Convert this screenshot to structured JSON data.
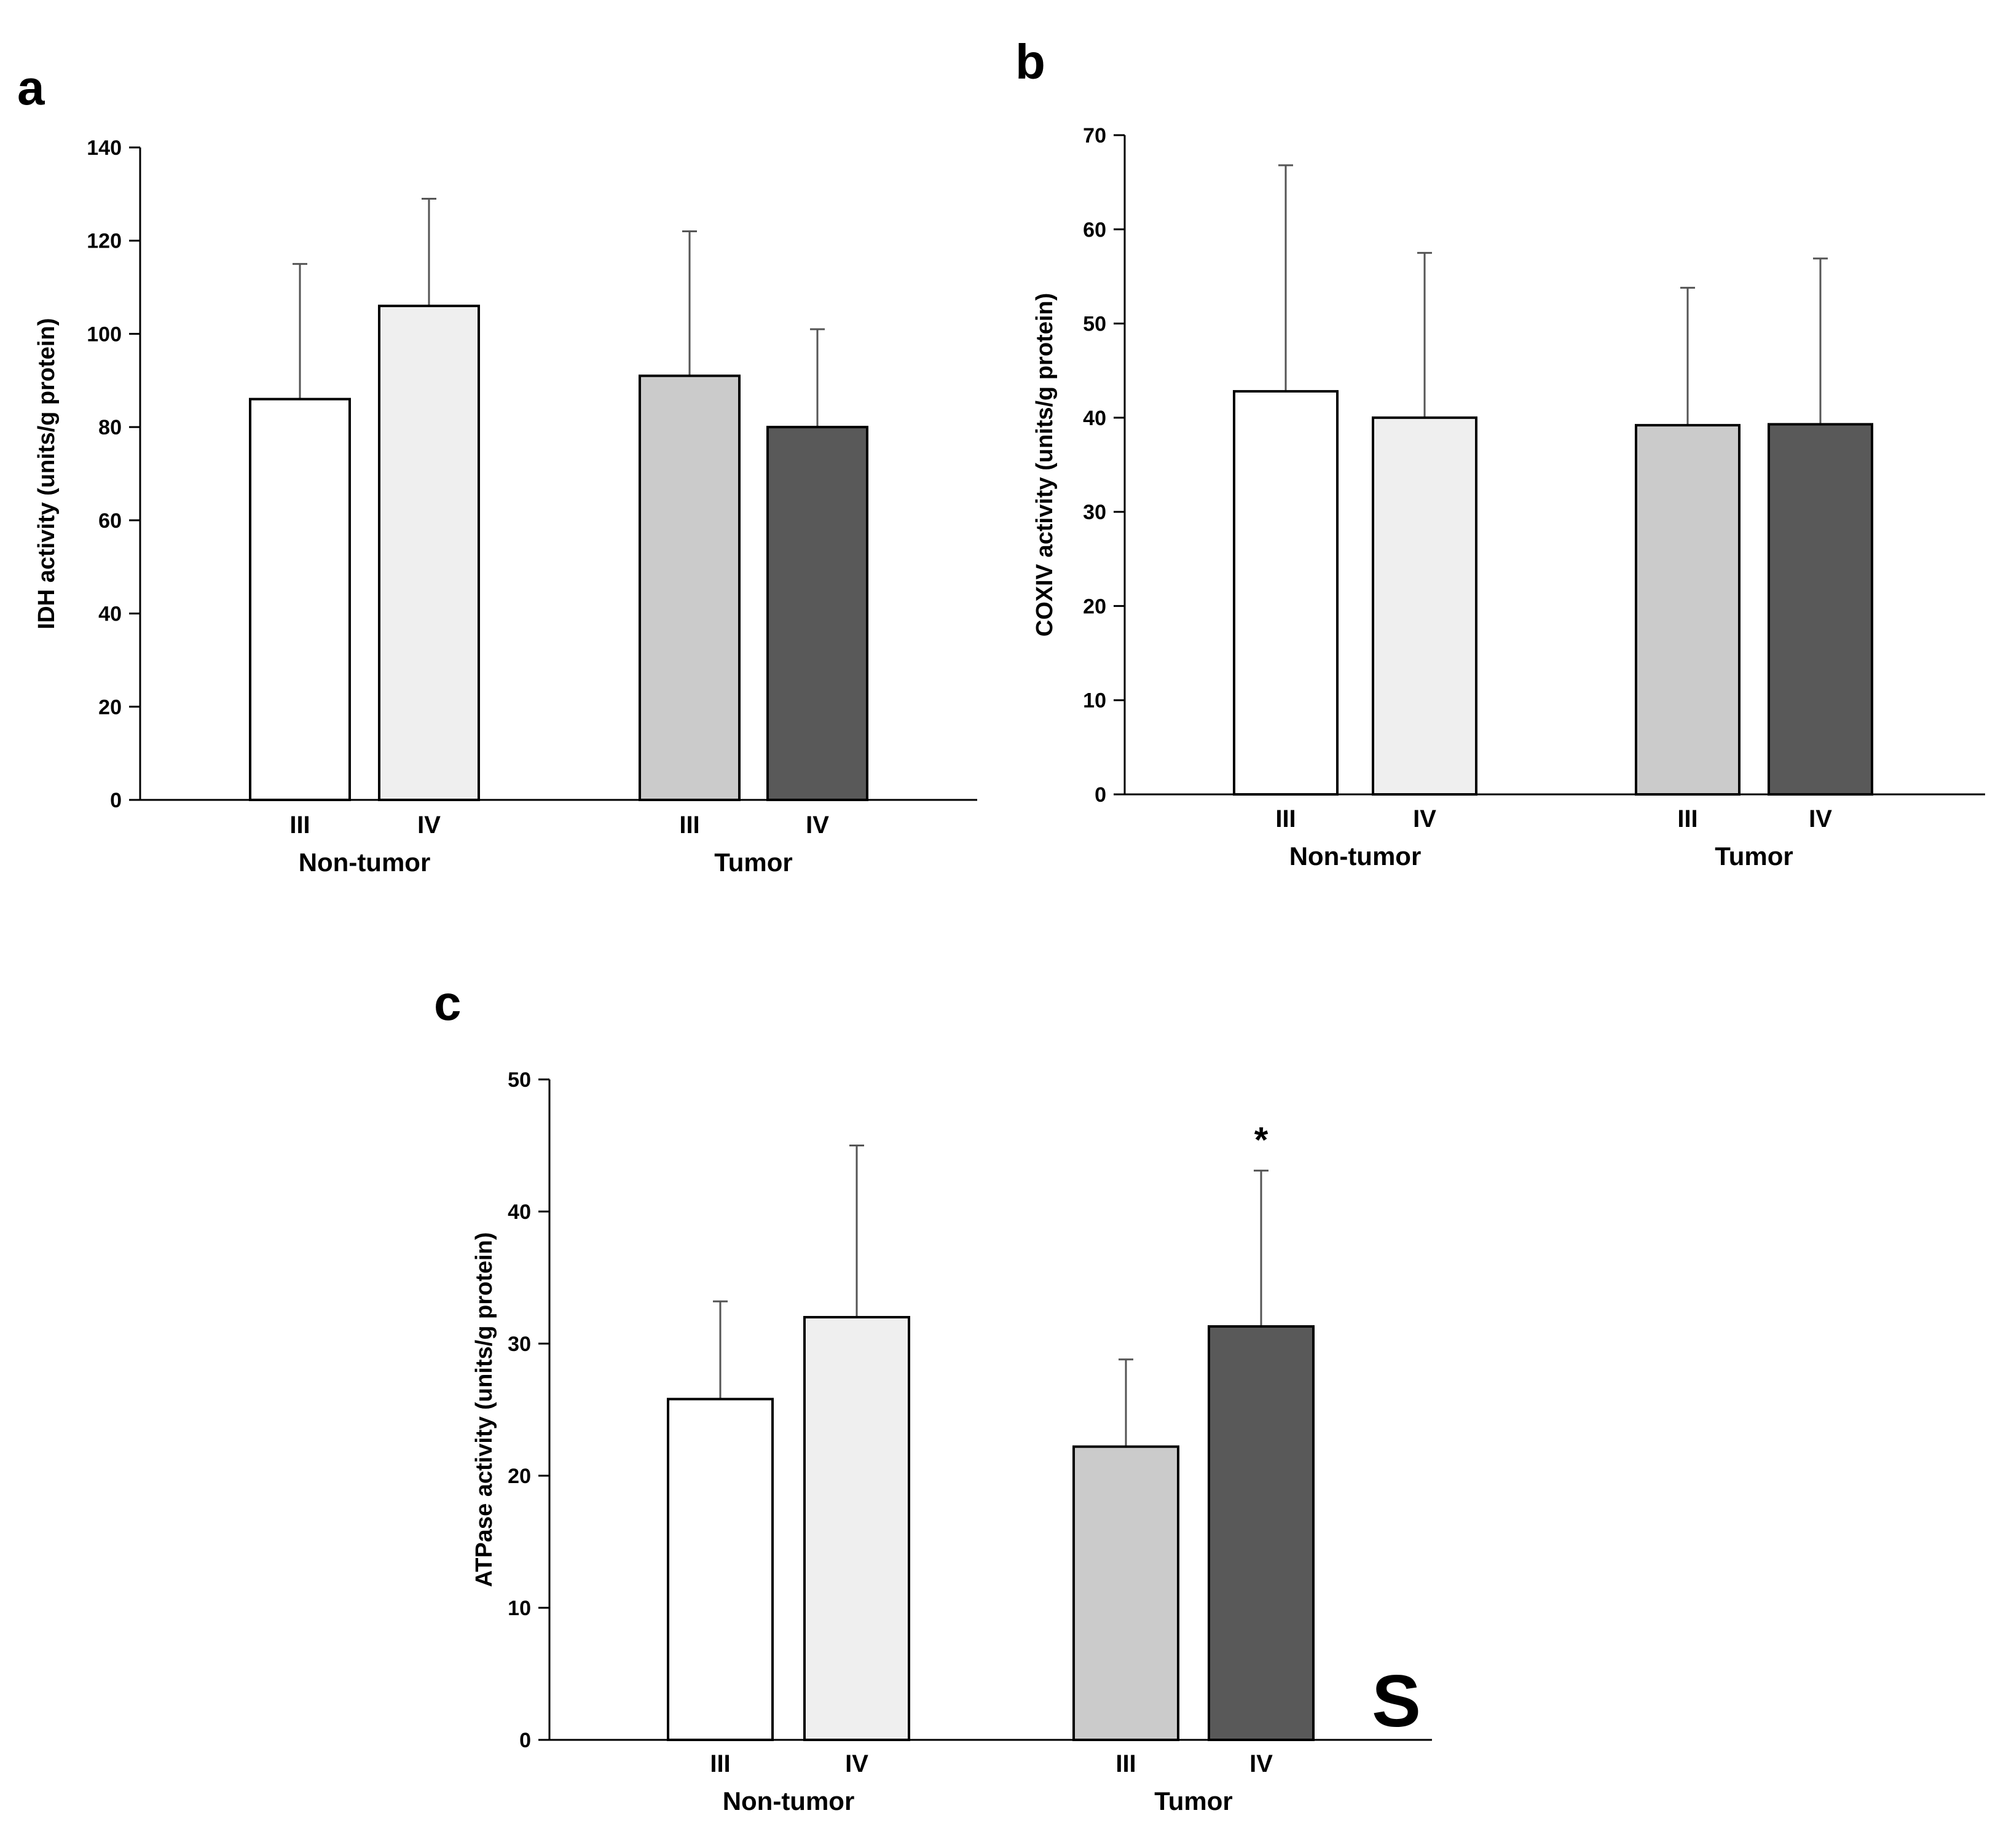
{
  "chart_data": [
    {
      "panel": "a",
      "type": "bar",
      "ylabel": "IDH   activity  (units/g protein)",
      "ylim": [
        0,
        140
      ],
      "yticks": [
        0,
        20,
        40,
        60,
        80,
        100,
        120,
        140
      ],
      "groups": [
        {
          "name": "Non-tumor",
          "bars": [
            {
              "category": "III",
              "value": 86,
              "error": 29,
              "color": "#ffffff"
            },
            {
              "category": "IV",
              "value": 106,
              "error": 23,
              "color": "#efefef"
            }
          ]
        },
        {
          "name": "Tumor",
          "bars": [
            {
              "category": "III",
              "value": 91,
              "error": 31,
              "color": "#cbcbcb"
            },
            {
              "category": "IV",
              "value": 80,
              "error": 21,
              "color": "#595959"
            }
          ]
        }
      ]
    },
    {
      "panel": "b",
      "type": "bar",
      "ylabel": "COXIV activity  (units/g protein)",
      "ylim": [
        0,
        70
      ],
      "yticks": [
        0,
        10,
        20,
        30,
        40,
        50,
        60,
        70
      ],
      "groups": [
        {
          "name": "Non-tumor",
          "bars": [
            {
              "category": "III",
              "value": 42.8,
              "error": 24,
              "color": "#ffffff"
            },
            {
              "category": "IV",
              "value": 40,
              "error": 17.5,
              "color": "#efefef"
            }
          ]
        },
        {
          "name": "Tumor",
          "bars": [
            {
              "category": "III",
              "value": 39.2,
              "error": 14.6,
              "color": "#cbcbcb"
            },
            {
              "category": "IV",
              "value": 39.3,
              "error": 17.6,
              "color": "#595959"
            }
          ]
        }
      ]
    },
    {
      "panel": "c",
      "type": "bar",
      "ylabel": "ATPase activity  (units/g protein)",
      "ylim": [
        0,
        50
      ],
      "yticks": [
        0,
        10,
        20,
        30,
        40,
        50
      ],
      "groups": [
        {
          "name": "Non-tumor",
          "bars": [
            {
              "category": "III",
              "value": 25.8,
              "error": 7.4,
              "color": "#ffffff"
            },
            {
              "category": "IV",
              "value": 32,
              "error": 13,
              "color": "#efefef"
            }
          ]
        },
        {
          "name": "Tumor",
          "bars": [
            {
              "category": "III",
              "value": 22.2,
              "error": 6.6,
              "color": "#cbcbcb"
            },
            {
              "category": "IV",
              "value": 31.3,
              "error": 11.8,
              "color": "#595959",
              "annotation": "*"
            }
          ]
        }
      ],
      "corner_text": "S"
    }
  ]
}
